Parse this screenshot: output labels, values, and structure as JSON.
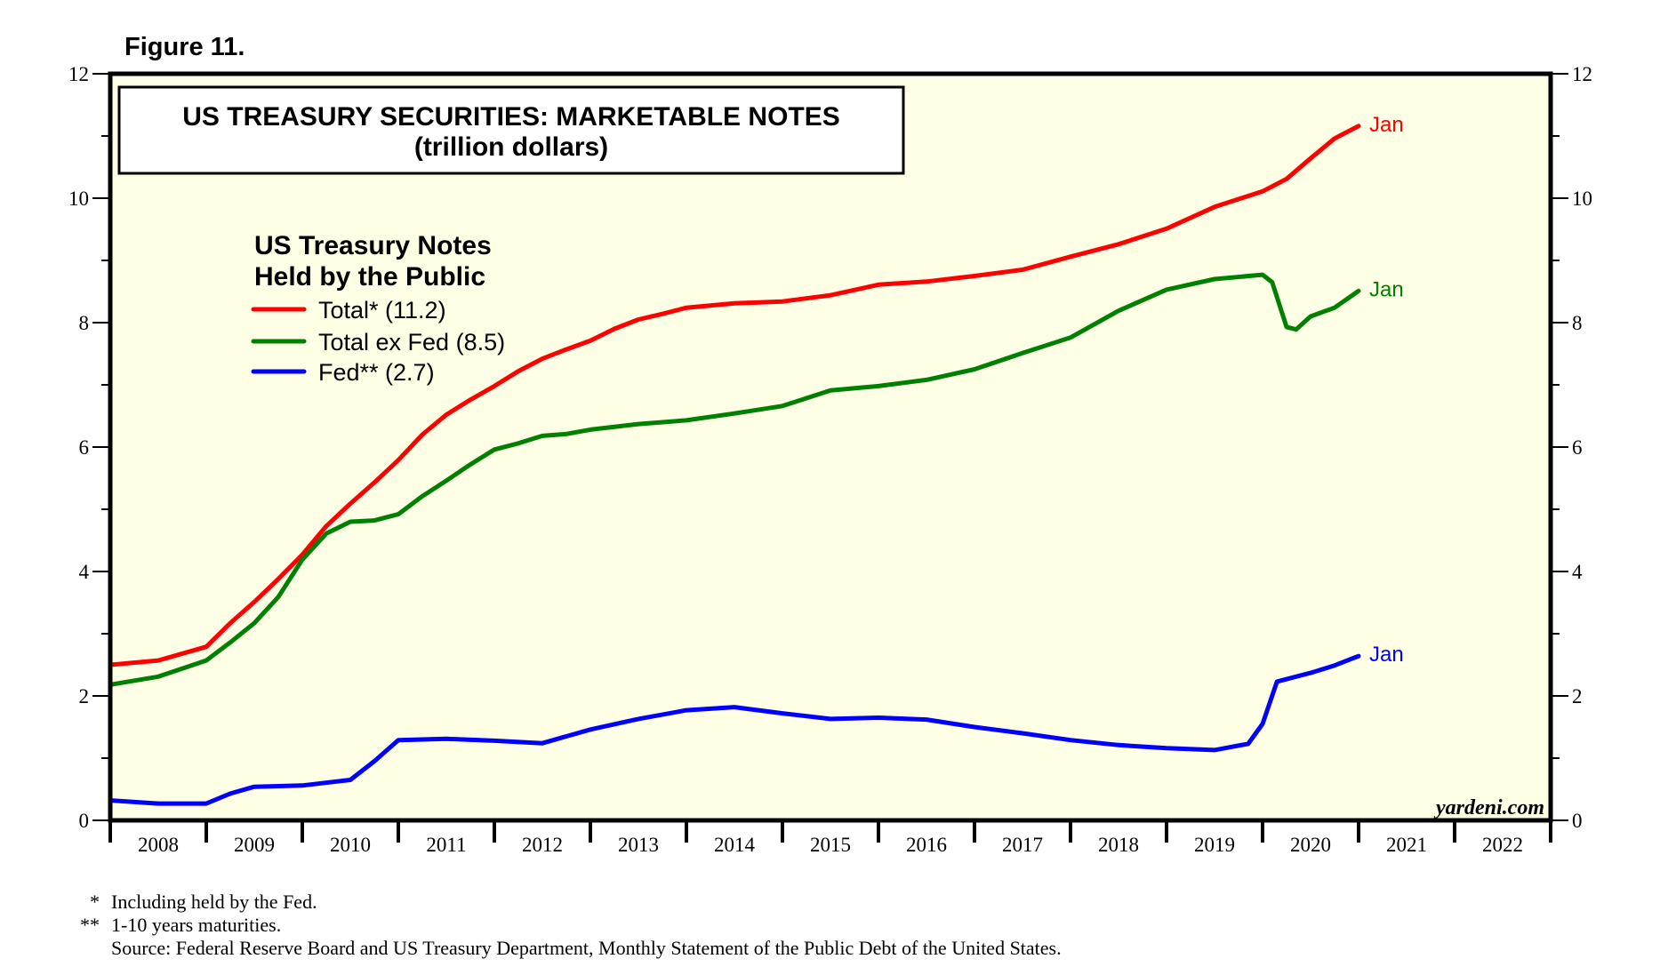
{
  "figure_label": "Figure 11.",
  "chart_data": {
    "type": "line",
    "title": "US TREASURY SECURITIES: MARKETABLE NOTES",
    "subtitle": "(trillion dollars)",
    "xlabel": "",
    "ylabel": "",
    "xlim": [
      2008,
      2023
    ],
    "ylim": [
      0,
      12
    ],
    "y_ticks": [
      0,
      2,
      4,
      6,
      8,
      10,
      12
    ],
    "y_tick_labels": [
      "0",
      "2",
      "4",
      "6",
      "8",
      "10",
      "12"
    ],
    "x_tick_labels": [
      "2008",
      "2009",
      "2010",
      "2011",
      "2012",
      "2013",
      "2014",
      "2015",
      "2016",
      "2017",
      "2018",
      "2019",
      "2020",
      "2021",
      "2022"
    ],
    "grid": false,
    "legend": {
      "title_lines": [
        "US Treasury Notes",
        "Held by the Public"
      ],
      "placement": "top-left"
    },
    "series": [
      {
        "name": "Total* (11.2)",
        "color": "#ff0000",
        "end_label": "Jan",
        "x": [
          2008.0,
          2008.5,
          2009.0,
          2009.25,
          2009.5,
          2009.75,
          2010.0,
          2010.25,
          2010.5,
          2010.75,
          2011.0,
          2011.25,
          2011.5,
          2011.75,
          2012.0,
          2012.25,
          2012.5,
          2012.75,
          2013.0,
          2013.25,
          2013.5,
          2013.75,
          2014.0,
          2014.5,
          2015.0,
          2015.5,
          2016.0,
          2016.5,
          2017.0,
          2017.5,
          2018.0,
          2018.5,
          2019.0,
          2019.5,
          2020.0,
          2020.25,
          2020.5,
          2020.75,
          2021.0
        ],
        "values": [
          2.5,
          2.57,
          2.79,
          3.17,
          3.51,
          3.88,
          4.27,
          4.73,
          5.09,
          5.43,
          5.79,
          6.2,
          6.52,
          6.76,
          6.98,
          7.22,
          7.42,
          7.57,
          7.71,
          7.9,
          8.05,
          8.14,
          8.24,
          8.31,
          8.34,
          8.44,
          8.61,
          8.66,
          8.75,
          8.85,
          9.06,
          9.26,
          9.51,
          9.86,
          10.11,
          10.31,
          10.64,
          10.96,
          11.16
        ]
      },
      {
        "name": "Total ex Fed (8.5)",
        "color": "#008000",
        "end_label": "Jan",
        "x": [
          2008.0,
          2008.5,
          2009.0,
          2009.25,
          2009.5,
          2009.75,
          2010.0,
          2010.25,
          2010.5,
          2010.75,
          2011.0,
          2011.25,
          2011.5,
          2011.75,
          2012.0,
          2012.25,
          2012.5,
          2012.75,
          2013.0,
          2013.5,
          2014.0,
          2014.5,
          2015.0,
          2015.5,
          2016.0,
          2016.5,
          2017.0,
          2017.5,
          2018.0,
          2018.5,
          2019.0,
          2019.5,
          2020.0,
          2020.1,
          2020.25,
          2020.35,
          2020.5,
          2020.75,
          2021.0
        ],
        "values": [
          2.18,
          2.31,
          2.57,
          2.86,
          3.17,
          3.59,
          4.19,
          4.61,
          4.8,
          4.82,
          4.92,
          5.21,
          5.46,
          5.72,
          5.96,
          6.06,
          6.18,
          6.21,
          6.28,
          6.37,
          6.43,
          6.54,
          6.66,
          6.91,
          6.98,
          7.08,
          7.25,
          7.51,
          7.76,
          8.19,
          8.53,
          8.7,
          8.77,
          8.65,
          7.93,
          7.89,
          8.1,
          8.24,
          8.51
        ]
      },
      {
        "name": "Fed** (2.7)",
        "color": "#0000ff",
        "end_label": "Jan",
        "x": [
          2008.0,
          2008.5,
          2009.0,
          2009.25,
          2009.5,
          2010.0,
          2010.5,
          2010.75,
          2011.0,
          2011.5,
          2012.0,
          2012.5,
          2013.0,
          2013.5,
          2014.0,
          2014.5,
          2015.0,
          2015.5,
          2016.0,
          2016.5,
          2017.0,
          2017.5,
          2018.0,
          2018.5,
          2019.0,
          2019.5,
          2019.85,
          2020.0,
          2020.15,
          2020.5,
          2020.75,
          2021.0
        ],
        "values": [
          0.32,
          0.27,
          0.27,
          0.43,
          0.54,
          0.56,
          0.65,
          0.95,
          1.29,
          1.31,
          1.28,
          1.24,
          1.46,
          1.63,
          1.77,
          1.82,
          1.72,
          1.63,
          1.65,
          1.62,
          1.5,
          1.4,
          1.29,
          1.21,
          1.16,
          1.13,
          1.23,
          1.55,
          2.23,
          2.37,
          2.49,
          2.64
        ]
      }
    ],
    "watermark": "yardeni.com"
  },
  "footnotes": [
    {
      "mark": "*",
      "text": "Including held by the Fed."
    },
    {
      "mark": "**",
      "text": "1-10 years maturities."
    },
    {
      "mark": "",
      "text": "Source: Federal Reserve Board and US Treasury Department, Monthly Statement of the Public Debt of the United States."
    }
  ]
}
